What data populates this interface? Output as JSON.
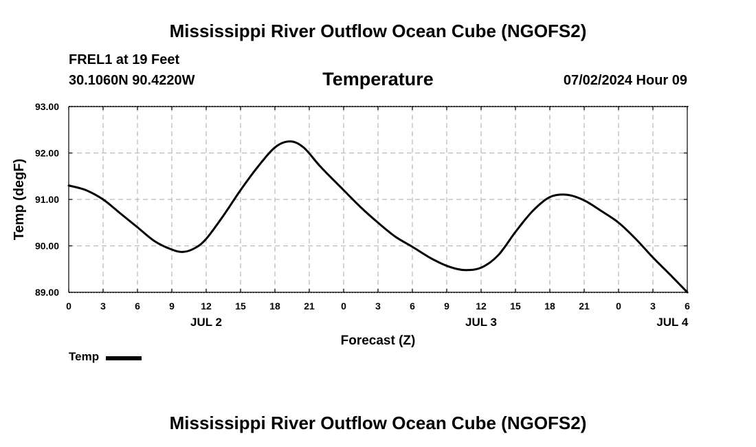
{
  "header": {
    "title": "Mississippi River Outflow Ocean Cube (NGOFS2)",
    "station": "FREL1 at 19 Feet",
    "coords": "30.1060N  90.4220W",
    "datetime": "07/02/2024 Hour 09"
  },
  "footer": {
    "title": "Mississippi River Outflow Ocean Cube (NGOFS2)"
  },
  "chart_data": {
    "type": "line",
    "title": "Temperature",
    "xlabel": "Forecast (Z)",
    "ylabel": "Temp (degF)",
    "x_unit": "hours since JUL 2 00Z",
    "xlim": [
      0,
      54
    ],
    "ylim": [
      89.0,
      93.0
    ],
    "grid": true,
    "y_ticks": [
      "89.00",
      "90.00",
      "91.00",
      "92.00",
      "93.00"
    ],
    "x_tick_labels": [
      "0",
      "3",
      "6",
      "9",
      "12",
      "15",
      "18",
      "21",
      "0",
      "3",
      "6",
      "9",
      "12",
      "15",
      "18",
      "21",
      "0",
      "3",
      "6"
    ],
    "date_labels": [
      {
        "label": "JUL 2",
        "hour": 12
      },
      {
        "label": "JUL 3",
        "hour": 36
      },
      {
        "label": "JUL 4",
        "hour": 52.7
      }
    ],
    "legend_position": "bottom-left",
    "series": [
      {
        "name": "Temp",
        "color": "#000000",
        "x": [
          0,
          1.5,
          3,
          4.5,
          6,
          7.5,
          9,
          10,
          11,
          12,
          13.5,
          15,
          16.5,
          18,
          19.3,
          20.5,
          22,
          24,
          25.5,
          27,
          28.5,
          30,
          31.5,
          33,
          34.5,
          36,
          37.5,
          39,
          40.5,
          42,
          43.5,
          45,
          46.5,
          48,
          49.5,
          51,
          52.5,
          54
        ],
        "values": [
          91.3,
          91.2,
          91.0,
          90.7,
          90.4,
          90.1,
          89.92,
          89.87,
          89.95,
          90.15,
          90.65,
          91.2,
          91.7,
          92.12,
          92.25,
          92.12,
          91.7,
          91.2,
          90.83,
          90.5,
          90.2,
          89.98,
          89.75,
          89.57,
          89.48,
          89.53,
          89.8,
          90.3,
          90.75,
          91.05,
          91.1,
          90.98,
          90.75,
          90.5,
          90.15,
          89.75,
          89.38,
          89.0
        ]
      }
    ]
  }
}
